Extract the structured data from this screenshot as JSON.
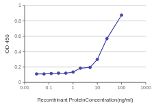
{
  "chart_data": {
    "type": "line",
    "x": [
      0.031,
      0.063,
      0.125,
      0.25,
      0.5,
      1.0,
      2.0,
      5.0,
      10.0,
      25.0,
      100.0
    ],
    "values": [
      0.11,
      0.11,
      0.115,
      0.12,
      0.12,
      0.135,
      0.185,
      0.195,
      0.3,
      0.57,
      0.875
    ],
    "color": "#4444aa",
    "marker": "circle",
    "xlabel": "Recombinant ProteinConcentration(ng/ml)",
    "ylabel": "OD 450",
    "log": "x",
    "xlim": [
      0.01,
      1000
    ],
    "ylim": [
      0,
      1.0
    ],
    "xticks": [
      0.01,
      0.1,
      1,
      10,
      100,
      1000
    ],
    "yticks": [
      0,
      0.2,
      0.4,
      0.6,
      0.8,
      1
    ],
    "grid": "y"
  }
}
